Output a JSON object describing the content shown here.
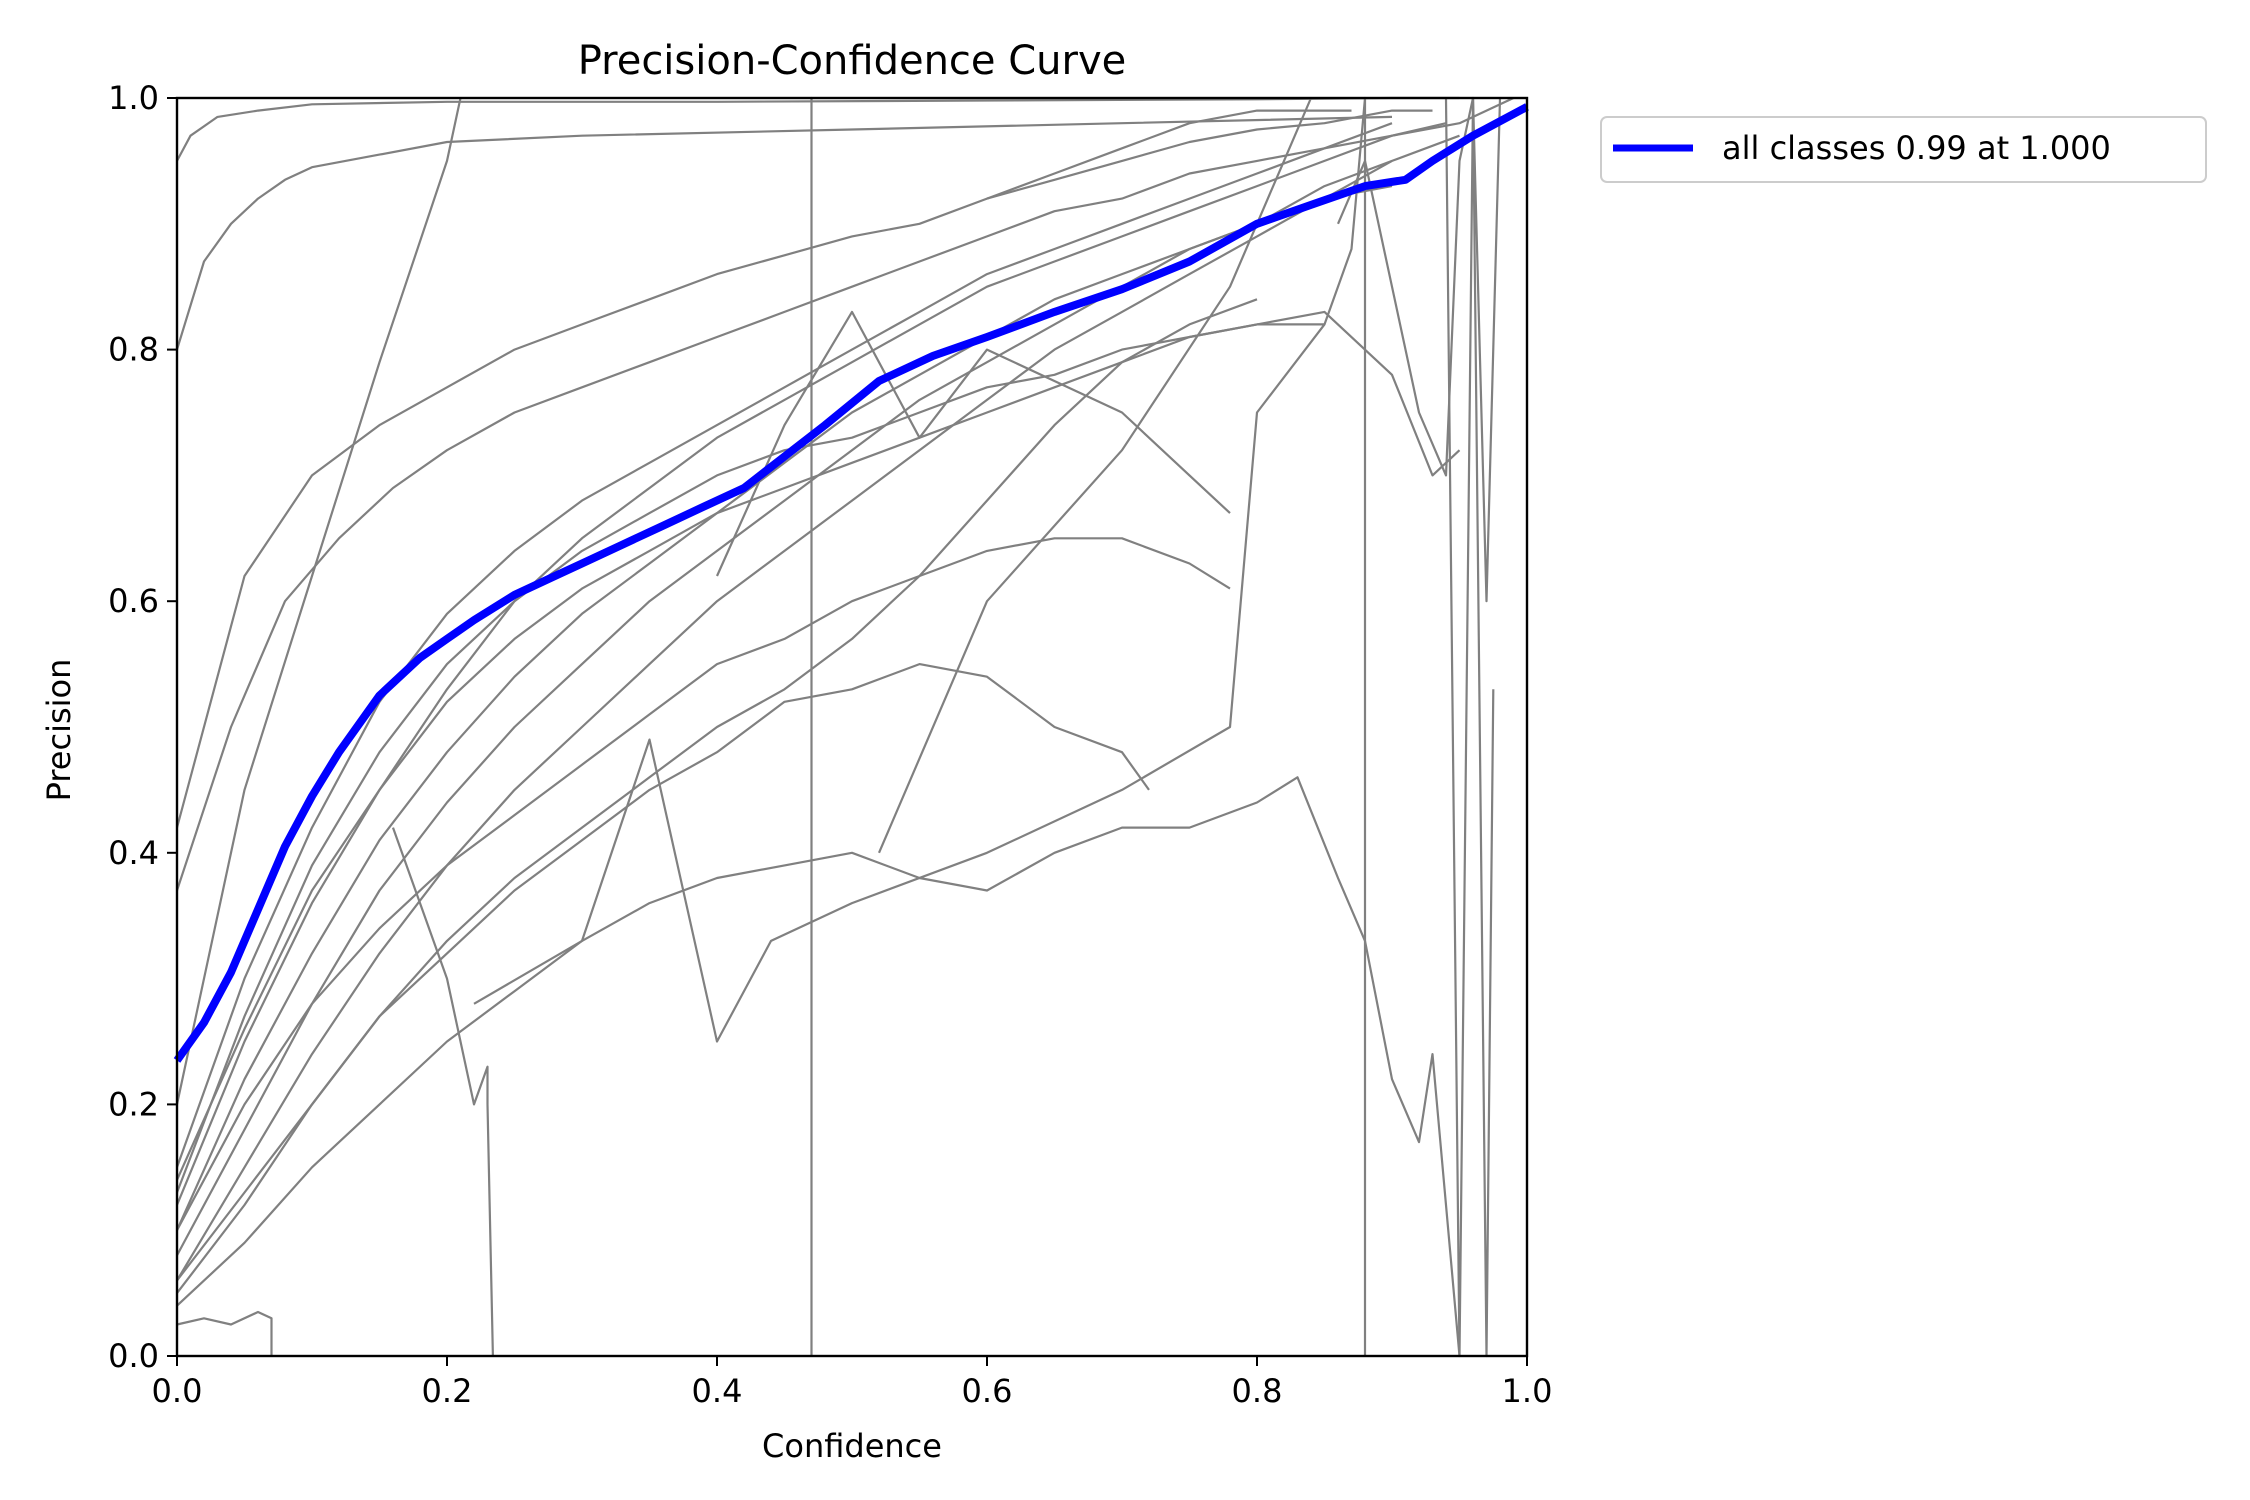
{
  "chart_data": {
    "type": "line",
    "title": "Precision-Confidence Curve",
    "xlabel": "Confidence",
    "ylabel": "Precision",
    "xlim": [
      0.0,
      1.0
    ],
    "ylim": [
      0.0,
      1.0
    ],
    "x_ticks": [
      "0.0",
      "0.2",
      "0.4",
      "0.6",
      "0.8",
      "1.0"
    ],
    "y_ticks": [
      "0.0",
      "0.2",
      "0.4",
      "0.6",
      "0.8",
      "1.0"
    ],
    "grid": false,
    "legend_position": "outside-top-right",
    "colors": {
      "per_class": "#808080",
      "all_classes": "#0000ff"
    },
    "series": [
      {
        "name": "all classes 0.99 at 1.000",
        "highlight": true,
        "x": [
          0.0,
          0.02,
          0.04,
          0.06,
          0.08,
          0.1,
          0.12,
          0.15,
          0.18,
          0.2,
          0.22,
          0.25,
          0.28,
          0.3,
          0.33,
          0.36,
          0.39,
          0.42,
          0.45,
          0.48,
          0.52,
          0.56,
          0.6,
          0.65,
          0.7,
          0.75,
          0.8,
          0.84,
          0.88,
          0.91,
          0.93,
          0.96,
          1.0
        ],
        "y": [
          0.235,
          0.265,
          0.305,
          0.355,
          0.405,
          0.445,
          0.48,
          0.525,
          0.555,
          0.57,
          0.585,
          0.605,
          0.62,
          0.63,
          0.645,
          0.66,
          0.675,
          0.69,
          0.715,
          0.74,
          0.775,
          0.795,
          0.81,
          0.83,
          0.848,
          0.87,
          0.9,
          0.915,
          0.93,
          0.935,
          0.95,
          0.97,
          0.993
        ]
      },
      {
        "x": [
          0.0,
          0.01,
          0.03,
          0.06,
          0.1,
          0.2,
          0.4,
          0.6,
          0.8,
          0.9,
          0.95
        ],
        "y": [
          0.95,
          0.97,
          0.985,
          0.99,
          0.995,
          0.997,
          0.997,
          0.998,
          0.999,
          1.0,
          1.0
        ]
      },
      {
        "x": [
          0.0,
          0.02,
          0.04,
          0.06,
          0.08,
          0.1,
          0.15,
          0.2,
          0.3,
          0.5,
          0.7,
          0.9
        ],
        "y": [
          0.8,
          0.87,
          0.9,
          0.92,
          0.935,
          0.945,
          0.955,
          0.965,
          0.97,
          0.975,
          0.98,
          0.985
        ]
      },
      {
        "x": [
          0.0,
          0.05,
          0.1,
          0.15,
          0.2,
          0.25,
          0.3,
          0.35,
          0.4,
          0.45,
          0.5,
          0.55,
          0.6,
          0.65,
          0.7,
          0.75,
          0.8,
          0.85,
          0.9,
          0.93
        ],
        "y": [
          0.42,
          0.62,
          0.7,
          0.74,
          0.77,
          0.8,
          0.82,
          0.84,
          0.86,
          0.875,
          0.89,
          0.9,
          0.92,
          0.935,
          0.95,
          0.965,
          0.975,
          0.98,
          0.99,
          0.99
        ]
      },
      {
        "x": [
          0.0,
          0.05,
          0.1,
          0.15,
          0.2,
          0.21
        ],
        "y": [
          0.2,
          0.45,
          0.62,
          0.79,
          0.95,
          1.0
        ]
      },
      {
        "x": [
          0.0,
          0.04,
          0.08,
          0.12,
          0.16,
          0.2,
          0.25,
          0.3,
          0.35,
          0.4,
          0.45,
          0.5,
          0.55,
          0.6,
          0.65,
          0.7,
          0.75,
          0.8,
          0.85,
          0.9,
          0.95,
          0.97,
          0.99
        ],
        "y": [
          0.37,
          0.5,
          0.6,
          0.65,
          0.69,
          0.72,
          0.75,
          0.77,
          0.79,
          0.81,
          0.83,
          0.85,
          0.87,
          0.89,
          0.91,
          0.92,
          0.94,
          0.95,
          0.96,
          0.97,
          0.98,
          0.99,
          1.0
        ]
      },
      {
        "x": [
          0.0,
          0.05,
          0.1,
          0.15,
          0.2,
          0.25,
          0.3,
          0.35,
          0.4,
          0.45,
          0.5,
          0.55,
          0.6,
          0.65,
          0.7,
          0.75,
          0.8,
          0.85,
          0.9
        ],
        "y": [
          0.15,
          0.3,
          0.42,
          0.52,
          0.59,
          0.64,
          0.68,
          0.71,
          0.74,
          0.77,
          0.8,
          0.83,
          0.86,
          0.88,
          0.9,
          0.92,
          0.94,
          0.96,
          0.98
        ]
      },
      {
        "x": [
          0.0,
          0.05,
          0.1,
          0.15,
          0.2,
          0.25,
          0.3,
          0.35,
          0.4,
          0.45,
          0.5,
          0.55,
          0.6,
          0.65,
          0.7,
          0.75,
          0.8,
          0.85,
          0.9,
          0.94
        ],
        "y": [
          0.12,
          0.25,
          0.36,
          0.45,
          0.53,
          0.6,
          0.65,
          0.69,
          0.73,
          0.76,
          0.79,
          0.82,
          0.85,
          0.87,
          0.89,
          0.91,
          0.93,
          0.95,
          0.97,
          0.98
        ]
      },
      {
        "x": [
          0.0,
          0.05,
          0.1,
          0.15,
          0.2,
          0.25,
          0.3,
          0.35,
          0.4,
          0.45,
          0.5,
          0.55,
          0.6,
          0.65,
          0.7,
          0.75,
          0.8,
          0.85,
          0.9
        ],
        "y": [
          0.1,
          0.22,
          0.32,
          0.41,
          0.48,
          0.54,
          0.59,
          0.63,
          0.67,
          0.71,
          0.75,
          0.78,
          0.81,
          0.84,
          0.86,
          0.88,
          0.9,
          0.92,
          0.93
        ]
      },
      {
        "x": [
          0.0,
          0.05,
          0.1,
          0.15,
          0.2,
          0.25,
          0.3,
          0.35,
          0.4,
          0.45,
          0.5,
          0.55,
          0.6,
          0.65,
          0.7,
          0.75,
          0.8,
          0.85,
          0.9
        ],
        "y": [
          0.08,
          0.18,
          0.28,
          0.37,
          0.44,
          0.5,
          0.55,
          0.6,
          0.64,
          0.68,
          0.72,
          0.76,
          0.79,
          0.82,
          0.85,
          0.88,
          0.9,
          0.93,
          0.95
        ]
      },
      {
        "x": [
          0.0,
          0.05,
          0.1,
          0.15,
          0.2,
          0.25,
          0.3,
          0.35,
          0.4,
          0.45,
          0.5,
          0.55,
          0.6,
          0.65,
          0.7,
          0.75,
          0.8,
          0.85,
          0.9,
          0.95
        ],
        "y": [
          0.06,
          0.15,
          0.24,
          0.32,
          0.39,
          0.45,
          0.5,
          0.55,
          0.6,
          0.64,
          0.68,
          0.72,
          0.76,
          0.8,
          0.83,
          0.86,
          0.89,
          0.92,
          0.95,
          0.97
        ]
      },
      {
        "x": [
          0.0,
          0.05,
          0.1,
          0.15,
          0.2,
          0.25,
          0.3,
          0.35,
          0.4,
          0.45,
          0.5,
          0.55,
          0.6,
          0.65,
          0.7,
          0.75,
          0.8
        ],
        "y": [
          0.05,
          0.12,
          0.2,
          0.27,
          0.33,
          0.38,
          0.42,
          0.46,
          0.5,
          0.53,
          0.57,
          0.62,
          0.68,
          0.74,
          0.79,
          0.82,
          0.84
        ]
      },
      {
        "x": [
          0.0,
          0.05,
          0.1,
          0.15,
          0.2,
          0.25,
          0.3,
          0.35,
          0.4,
          0.45,
          0.5,
          0.55,
          0.6,
          0.65,
          0.7,
          0.75,
          0.8,
          0.85
        ],
        "y": [
          0.13,
          0.27,
          0.39,
          0.48,
          0.55,
          0.6,
          0.64,
          0.67,
          0.7,
          0.72,
          0.73,
          0.75,
          0.77,
          0.78,
          0.8,
          0.81,
          0.82,
          0.82
        ]
      },
      {
        "x": [
          0.0,
          0.05,
          0.1,
          0.15,
          0.2,
          0.25,
          0.3,
          0.35,
          0.4,
          0.45,
          0.5,
          0.55,
          0.6,
          0.65,
          0.7,
          0.75,
          0.8,
          0.85,
          0.9,
          0.93,
          0.95
        ],
        "y": [
          0.14,
          0.26,
          0.37,
          0.45,
          0.52,
          0.57,
          0.61,
          0.64,
          0.67,
          0.69,
          0.71,
          0.73,
          0.75,
          0.77,
          0.79,
          0.81,
          0.82,
          0.83,
          0.78,
          0.7,
          0.72
        ]
      },
      {
        "x": [
          0.0,
          0.05,
          0.1,
          0.15,
          0.2,
          0.25,
          0.3,
          0.35,
          0.4,
          0.45,
          0.5,
          0.55,
          0.6,
          0.65,
          0.7,
          0.75,
          0.78
        ],
        "y": [
          0.1,
          0.2,
          0.28,
          0.34,
          0.39,
          0.43,
          0.47,
          0.51,
          0.55,
          0.57,
          0.6,
          0.62,
          0.64,
          0.65,
          0.65,
          0.63,
          0.61
        ]
      },
      {
        "x": [
          0.0,
          0.05,
          0.1,
          0.15,
          0.2,
          0.25,
          0.3,
          0.35,
          0.4,
          0.45,
          0.5,
          0.55,
          0.6,
          0.65,
          0.7,
          0.72
        ],
        "y": [
          0.06,
          0.13,
          0.2,
          0.27,
          0.32,
          0.37,
          0.41,
          0.45,
          0.48,
          0.52,
          0.53,
          0.55,
          0.54,
          0.5,
          0.48,
          0.45
        ]
      },
      {
        "x": [
          0.0,
          0.05,
          0.1,
          0.15,
          0.2,
          0.25,
          0.3,
          0.35,
          0.4,
          0.45,
          0.5,
          0.55,
          0.6,
          0.65,
          0.7,
          0.75,
          0.8,
          0.83,
          0.86,
          0.88,
          0.9,
          0.92,
          0.93,
          0.95
        ],
        "y": [
          0.04,
          0.09,
          0.15,
          0.2,
          0.25,
          0.29,
          0.33,
          0.36,
          0.38,
          0.39,
          0.4,
          0.38,
          0.37,
          0.4,
          0.42,
          0.42,
          0.44,
          0.46,
          0.38,
          0.33,
          0.22,
          0.17,
          0.24,
          0.0
        ]
      },
      {
        "x": [
          0.0,
          0.02,
          0.04,
          0.06,
          0.07,
          0.07
        ],
        "y": [
          0.025,
          0.03,
          0.025,
          0.035,
          0.03,
          0.0
        ]
      },
      {
        "x": [
          0.16,
          0.2,
          0.22,
          0.23,
          0.23,
          0.234
        ],
        "y": [
          0.42,
          0.3,
          0.2,
          0.23,
          0.2,
          0.0
        ]
      },
      {
        "x": [
          0.47,
          0.47,
          0.47
        ],
        "y": [
          0.0,
          1.0,
          0.35
        ]
      },
      {
        "x": [
          0.22,
          0.3,
          0.35,
          0.4,
          0.44,
          0.5,
          0.6,
          0.7,
          0.78,
          0.8,
          0.85,
          0.87,
          0.88,
          0.88
        ],
        "y": [
          0.28,
          0.33,
          0.49,
          0.25,
          0.33,
          0.36,
          0.4,
          0.45,
          0.5,
          0.75,
          0.82,
          0.88,
          1.0,
          0.0
        ]
      },
      {
        "x": [
          0.4,
          0.45,
          0.5,
          0.55,
          0.6,
          0.7,
          0.75,
          0.78
        ],
        "y": [
          0.62,
          0.74,
          0.83,
          0.73,
          0.8,
          0.75,
          0.7,
          0.67
        ]
      },
      {
        "x": [
          0.52,
          0.6,
          0.7,
          0.78,
          0.8,
          0.82,
          0.84
        ],
        "y": [
          0.4,
          0.6,
          0.72,
          0.85,
          0.9,
          0.95,
          1.0
        ]
      },
      {
        "x": [
          0.86,
          0.88,
          0.9,
          0.92,
          0.94,
          0.95,
          0.96,
          0.97,
          0.98
        ],
        "y": [
          0.9,
          0.95,
          0.85,
          0.75,
          0.7,
          0.95,
          1.0,
          0.6,
          1.0
        ]
      },
      {
        "x": [
          0.94,
          0.95,
          0.96,
          0.97,
          0.975
        ],
        "y": [
          1.0,
          0.0,
          1.0,
          0.0,
          0.53
        ]
      },
      {
        "x": [
          0.6,
          0.65,
          0.7,
          0.75,
          0.8,
          0.82,
          0.85,
          0.87
        ],
        "y": [
          0.92,
          0.94,
          0.96,
          0.98,
          0.99,
          0.99,
          0.99,
          0.99
        ]
      }
    ]
  }
}
